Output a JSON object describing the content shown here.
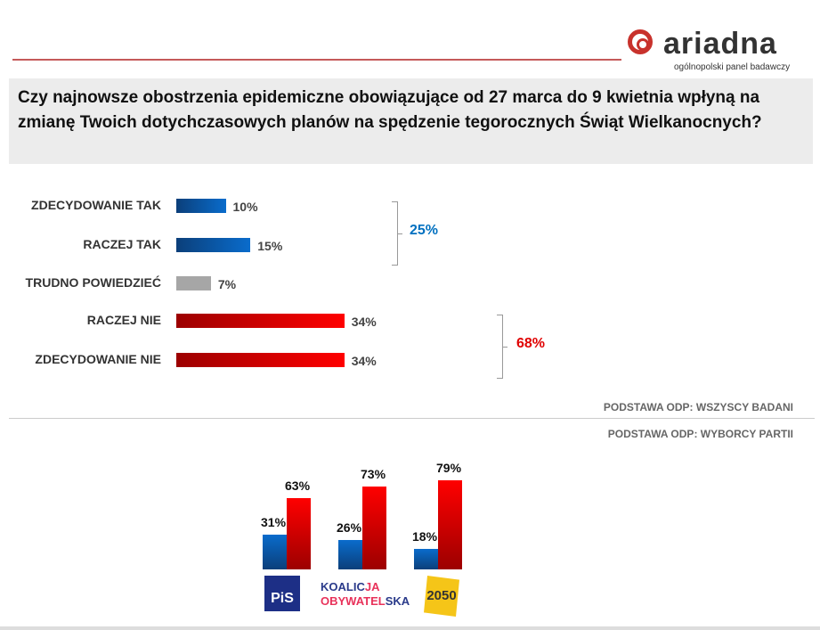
{
  "logo": {
    "name": "ariadna",
    "subtitle": "ogólnopolski panel badawczy"
  },
  "question": "Czy najnowsze obostrzenia epidemiczne obowiązujące od 27 marca do 9 kwietnia wpłyną na zmianę Twoich dotychczasowych planów na spędzenie tegorocznych Świąt Wielkanocnych?",
  "base_all": "PODSTAWA ODP: WSZYSCY BADANI",
  "base_parties": "PODSTAWA ODP: WYBORCY PARTII",
  "chart_data": [
    {
      "type": "bar",
      "orientation": "horizontal",
      "categories": [
        "ZDECYDOWANIE TAK",
        "RACZEJ TAK",
        "TRUDNO POWIEDZIEĆ",
        "RACZEJ NIE",
        "ZDECYDOWANIE NIE"
      ],
      "values": [
        10,
        15,
        7,
        34,
        34
      ],
      "labels": [
        "10%",
        "15%",
        "7%",
        "34%",
        "34%"
      ],
      "colors": [
        "#0a68c4",
        "#0a68c4",
        "#a6a6a6",
        "#e80000",
        "#e80000"
      ],
      "groups": [
        {
          "label": "25%",
          "color": "#0070c0"
        },
        {
          "label": "68%",
          "color": "#e00000"
        }
      ]
    },
    {
      "type": "bar",
      "orientation": "vertical",
      "categories": [
        "PiS",
        "KOALICJA OBYWATELSKA",
        "2050"
      ],
      "series": [
        {
          "values": [
            31,
            26,
            18
          ],
          "labels": [
            "31%",
            "26%",
            "18%"
          ],
          "color": "#0a68c4"
        },
        {
          "values": [
            63,
            73,
            79
          ],
          "labels": [
            "63%",
            "73%",
            "79%"
          ],
          "color": "#e80000"
        }
      ],
      "ylim": [
        0,
        100
      ]
    }
  ],
  "party_logos": {
    "pis": "PiS",
    "ko_line1_a": "KOALIC",
    "ko_line1_b": "JA",
    "ko_line2_a": "OBYWATEL",
    "ko_line2_b": "SKA",
    "p2050": "2050"
  }
}
